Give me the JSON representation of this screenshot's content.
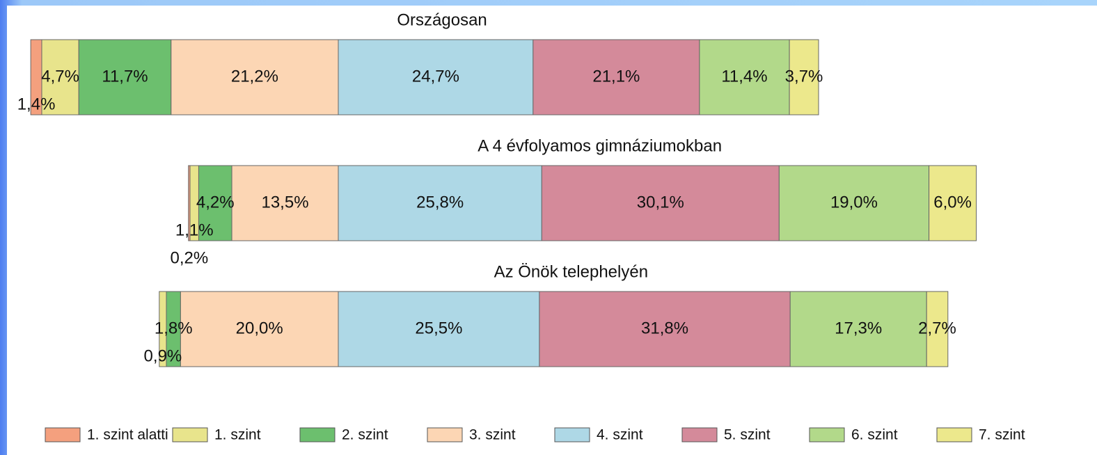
{
  "chart_data": {
    "type": "stacked-bar-horizontal",
    "categories": [
      "Országosan",
      "A 4 évfolyamos gimnáziumokban",
      "Az Önök telephelyén"
    ],
    "series": [
      {
        "name": "1. szint alatti",
        "color": "#f4a07e",
        "values": [
          1.4,
          0.2,
          null
        ],
        "value_labels": [
          "1,4%",
          "0,2%",
          null
        ]
      },
      {
        "name": "1. szint",
        "color": "#e8e48c",
        "values": [
          4.7,
          1.1,
          0.9
        ],
        "value_labels": [
          "4,7%",
          "1,1%",
          "0,9%"
        ]
      },
      {
        "name": "2. szint",
        "color": "#6cbf6e",
        "values": [
          11.7,
          4.2,
          1.8
        ],
        "value_labels": [
          "11,7%",
          "4,2%",
          "1,8%"
        ]
      },
      {
        "name": "3. szint",
        "color": "#fcd6b4",
        "values": [
          21.2,
          13.5,
          20.0
        ],
        "value_labels": [
          "21,2%",
          "13,5%",
          "20,0%"
        ]
      },
      {
        "name": "4. szint",
        "color": "#aed8e6",
        "values": [
          24.7,
          25.8,
          25.5
        ],
        "value_labels": [
          "24,7%",
          "25,8%",
          "25,5%"
        ]
      },
      {
        "name": "5. szint",
        "color": "#d48a9a",
        "values": [
          21.1,
          30.1,
          31.8
        ],
        "value_labels": [
          "21,1%",
          "30,1%",
          "31,8%"
        ]
      },
      {
        "name": "6. szint",
        "color": "#b2d98a",
        "values": [
          11.4,
          19.0,
          17.3
        ],
        "value_labels": [
          "11,4%",
          "19,0%",
          "17,3%"
        ]
      },
      {
        "name": "7. szint",
        "color": "#ece88c",
        "values": [
          3.7,
          6.0,
          2.7
        ],
        "value_labels": [
          "3,7%",
          "6,0%",
          "2,7%"
        ]
      }
    ],
    "legend": "bottom"
  }
}
